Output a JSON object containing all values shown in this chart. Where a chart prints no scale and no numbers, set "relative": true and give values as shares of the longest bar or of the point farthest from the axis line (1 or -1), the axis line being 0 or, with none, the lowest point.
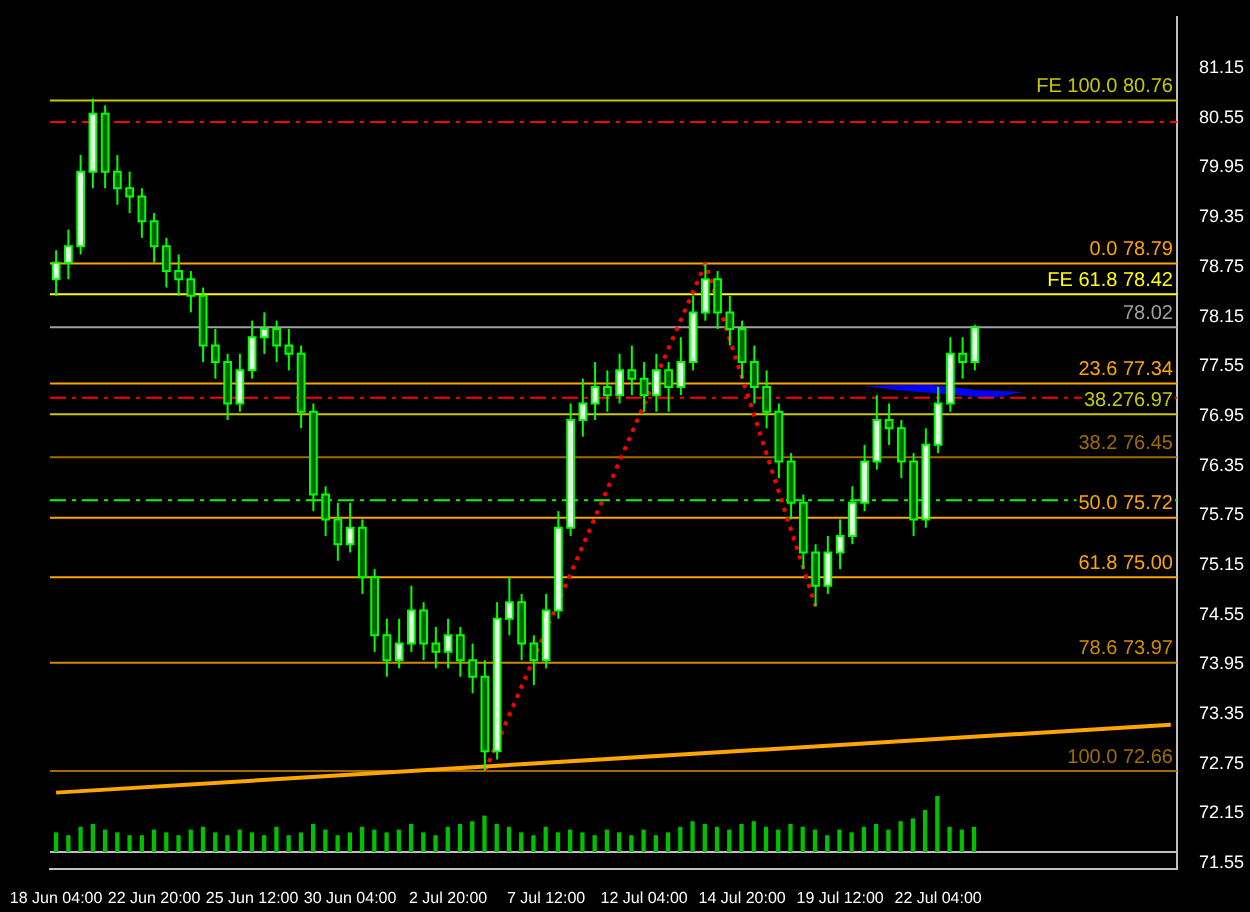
{
  "chart_data": [
    {
      "type": "candlestick",
      "categories": [
        "18 Jun 04:00",
        null,
        null,
        null,
        null,
        null,
        null,
        null,
        "22 Jun 20:00",
        null,
        null,
        null,
        null,
        null,
        null,
        null,
        "25 Jun 12:00",
        null,
        null,
        null,
        null,
        null,
        null,
        null,
        "30 Jun 04:00",
        null,
        null,
        null,
        null,
        null,
        null,
        null,
        "2 Jul 20:00",
        null,
        null,
        null,
        null,
        null,
        null,
        null,
        "7 Jul 12:00",
        null,
        null,
        null,
        null,
        null,
        null,
        null,
        "12 Jul 04:00",
        null,
        null,
        null,
        null,
        null,
        null,
        null,
        "14 Jul 20:00",
        null,
        null,
        null,
        null,
        null,
        null,
        null,
        "19 Jul 12:00",
        null,
        null,
        null,
        null,
        null,
        null,
        null,
        "22 Jul 04:00",
        null,
        null,
        null,
        null,
        null,
        null,
        null,
        null,
        null,
        null,
        null,
        null,
        null,
        null,
        null,
        null,
        null,
        null,
        null
      ],
      "ohlc": [
        [
          78.6,
          78.95,
          78.4,
          78.8
        ],
        [
          78.8,
          79.2,
          78.6,
          79.0
        ],
        [
          79.0,
          80.1,
          78.9,
          79.9
        ],
        [
          79.9,
          80.78,
          79.7,
          80.6
        ],
        [
          80.6,
          80.7,
          79.7,
          79.9
        ],
        [
          79.9,
          80.1,
          79.5,
          79.7
        ],
        [
          79.7,
          79.9,
          79.4,
          79.6
        ],
        [
          79.6,
          79.7,
          79.1,
          79.3
        ],
        [
          79.3,
          79.4,
          78.8,
          79.0
        ],
        [
          79.0,
          79.1,
          78.5,
          78.7
        ],
        [
          78.7,
          78.9,
          78.4,
          78.6
        ],
        [
          78.6,
          78.7,
          78.2,
          78.4
        ],
        [
          78.4,
          78.5,
          77.6,
          77.8
        ],
        [
          77.8,
          78.0,
          77.4,
          77.6
        ],
        [
          77.6,
          77.7,
          76.9,
          77.1
        ],
        [
          77.1,
          77.7,
          77.0,
          77.5
        ],
        [
          77.5,
          78.1,
          77.4,
          77.9
        ],
        [
          77.9,
          78.2,
          77.7,
          78.0
        ],
        [
          78.0,
          78.1,
          77.6,
          77.8
        ],
        [
          77.8,
          78.0,
          77.5,
          77.7
        ],
        [
          77.7,
          77.8,
          76.8,
          77.0
        ],
        [
          77.0,
          77.1,
          75.8,
          76.0
        ],
        [
          76.0,
          76.1,
          75.5,
          75.7
        ],
        [
          75.7,
          75.9,
          75.2,
          75.4
        ],
        [
          75.4,
          75.9,
          75.3,
          75.6
        ],
        [
          75.6,
          75.7,
          74.8,
          75.0
        ],
        [
          75.0,
          75.1,
          74.1,
          74.3
        ],
        [
          74.3,
          74.5,
          73.8,
          74.0
        ],
        [
          74.0,
          74.5,
          73.9,
          74.2
        ],
        [
          74.2,
          74.9,
          74.1,
          74.6
        ],
        [
          74.6,
          74.7,
          74.0,
          74.2
        ],
        [
          74.2,
          74.4,
          73.9,
          74.1
        ],
        [
          74.1,
          74.5,
          73.9,
          74.3
        ],
        [
          74.3,
          74.4,
          73.8,
          74.0
        ],
        [
          74.0,
          74.2,
          73.6,
          73.8
        ],
        [
          73.8,
          74.0,
          72.66,
          72.9
        ],
        [
          72.9,
          74.7,
          72.8,
          74.5
        ],
        [
          74.5,
          75.0,
          74.3,
          74.7
        ],
        [
          74.7,
          74.8,
          74.0,
          74.2
        ],
        [
          74.2,
          74.3,
          73.7,
          74.0
        ],
        [
          74.0,
          74.8,
          73.9,
          74.6
        ],
        [
          74.6,
          75.8,
          74.5,
          75.6
        ],
        [
          75.6,
          77.1,
          75.5,
          76.9
        ],
        [
          76.9,
          77.4,
          76.7,
          77.1
        ],
        [
          77.1,
          77.6,
          76.9,
          77.3
        ],
        [
          77.3,
          77.5,
          77.0,
          77.2
        ],
        [
          77.2,
          77.7,
          77.1,
          77.5
        ],
        [
          77.5,
          77.8,
          77.2,
          77.4
        ],
        [
          77.4,
          77.6,
          77.0,
          77.2
        ],
        [
          77.2,
          77.7,
          77.0,
          77.5
        ],
        [
          77.5,
          77.6,
          77.0,
          77.3
        ],
        [
          77.3,
          77.9,
          77.2,
          77.6
        ],
        [
          77.6,
          78.4,
          77.5,
          78.2
        ],
        [
          78.2,
          78.79,
          78.1,
          78.6
        ],
        [
          78.6,
          78.7,
          78.0,
          78.2
        ],
        [
          78.2,
          78.4,
          77.8,
          78.0
        ],
        [
          78.0,
          78.1,
          77.4,
          77.6
        ],
        [
          77.6,
          77.8,
          77.1,
          77.3
        ],
        [
          77.3,
          77.5,
          76.8,
          77.0
        ],
        [
          77.0,
          77.1,
          76.2,
          76.4
        ],
        [
          76.4,
          76.5,
          75.7,
          75.9
        ],
        [
          75.9,
          76.0,
          75.1,
          75.3
        ],
        [
          75.3,
          75.4,
          74.65,
          74.9
        ],
        [
          74.9,
          75.5,
          74.8,
          75.3
        ],
        [
          75.3,
          75.7,
          75.1,
          75.5
        ],
        [
          75.5,
          76.1,
          75.4,
          75.9
        ],
        [
          75.9,
          76.6,
          75.8,
          76.4
        ],
        [
          76.4,
          77.2,
          76.3,
          76.9
        ],
        [
          76.9,
          77.1,
          76.6,
          76.8
        ],
        [
          76.8,
          76.9,
          76.2,
          76.4
        ],
        [
          76.4,
          76.5,
          75.5,
          75.7
        ],
        [
          75.7,
          76.8,
          75.6,
          76.6
        ],
        [
          76.6,
          77.3,
          76.5,
          77.1
        ],
        [
          77.1,
          77.9,
          77.0,
          77.7
        ],
        [
          77.7,
          77.9,
          77.4,
          77.6
        ],
        [
          77.6,
          78.05,
          77.5,
          78.02
        ],
        null,
        null,
        null,
        null,
        null,
        null,
        null,
        null,
        null,
        null,
        null,
        null,
        null,
        null,
        null,
        null
      ],
      "series": [
        {
          "type": "line",
          "color": "#ffa500",
          "line_style": "solid",
          "values": [
            72.4,
            null,
            null,
            null,
            null,
            null,
            null,
            null,
            null,
            null,
            null,
            null,
            null,
            null,
            null,
            null,
            null,
            null,
            null,
            null,
            null,
            null,
            null,
            null,
            null,
            null,
            null,
            null,
            null,
            null,
            null,
            null,
            null,
            null,
            null,
            null,
            null,
            null,
            null,
            null,
            null,
            null,
            null,
            null,
            null,
            null,
            null,
            null,
            null,
            null,
            null,
            null,
            null,
            null,
            null,
            null,
            null,
            null,
            null,
            null,
            null,
            null,
            null,
            null,
            null,
            null,
            null,
            null,
            null,
            null,
            null,
            null,
            null,
            null,
            null,
            null,
            null,
            null,
            null,
            null,
            null,
            null,
            null,
            null,
            null,
            null,
            null,
            null,
            null,
            null,
            null,
            73.22
          ]
        },
        {
          "type": "line",
          "color": "#ff0000",
          "line_style": "dotted",
          "values": [
            null,
            null,
            null,
            null,
            null,
            null,
            null,
            null,
            null,
            null,
            null,
            null,
            null,
            null,
            null,
            null,
            null,
            null,
            null,
            null,
            null,
            null,
            null,
            null,
            null,
            null,
            null,
            null,
            null,
            null,
            null,
            null,
            null,
            null,
            null,
            72.66,
            null,
            null,
            null,
            null,
            null,
            null,
            null,
            null,
            null,
            null,
            null,
            null,
            null,
            null,
            null,
            null,
            null,
            78.79,
            null,
            null,
            null,
            null,
            null,
            null,
            null,
            null,
            74.65,
            null,
            null,
            null,
            null,
            null,
            null,
            null,
            null,
            null,
            null,
            null,
            null,
            null,
            null,
            null,
            null,
            null,
            null,
            null,
            null,
            null,
            null,
            null,
            null,
            null,
            null,
            null,
            null,
            null
          ]
        }
      ],
      "ref_lines": [
        {
          "axis": "y",
          "value": 80.76,
          "label": "FE 100.0 80.76",
          "color": "#c8c800"
        },
        {
          "axis": "y",
          "value": 78.79,
          "label": "0.0 78.79",
          "color": "#ffa500"
        },
        {
          "axis": "y",
          "value": 78.42,
          "label": "FE 61.8 78.42",
          "color": "#ffff00"
        },
        {
          "axis": "y",
          "value": 77.34,
          "label": "23.6 77.34",
          "color": "#ffa500"
        },
        {
          "axis": "y",
          "value": 76.97,
          "label": "38.276.97",
          "color": "#c8c800"
        },
        {
          "axis": "y",
          "value": 76.45,
          "label": "38.2 76.45",
          "color": "#a06c00"
        },
        {
          "axis": "y",
          "value": 75.72,
          "label": "50.0 75.72",
          "color": "#ffa500"
        },
        {
          "axis": "y",
          "value": 75.0,
          "label": "61.8 75.00",
          "color": "#ffa500"
        },
        {
          "axis": "y",
          "value": 73.97,
          "label": "78.6 73.97",
          "color": "#d08c00"
        },
        {
          "axis": "y",
          "value": 72.66,
          "label": "100.0 72.66",
          "color": "#a06c00"
        },
        {
          "axis": "y",
          "value": 80.5,
          "color": "#ff0000",
          "line_style": "dashed"
        },
        {
          "axis": "y",
          "value": 77.17,
          "color": "#ff0000",
          "line_style": "dashed"
        },
        {
          "axis": "y",
          "value": 75.93,
          "color": "#00ff00",
          "line_style": "dashed"
        },
        {
          "axis": "y",
          "value": 78.02,
          "label": "78.02",
          "color": "#a0a0a0"
        }
      ],
      "ylim": [
        71.48,
        81.77
      ],
      "yticks": [
        71.55,
        72.15,
        72.75,
        73.35,
        73.95,
        74.55,
        75.15,
        75.75,
        76.35,
        76.95,
        77.55,
        78.15,
        78.75,
        79.35,
        79.95,
        80.55,
        81.15
      ],
      "grid": false,
      "legend": false
    },
    {
      "type": "bar",
      "relative": true,
      "color": "#00c000",
      "categories": [
        null,
        null,
        null,
        null,
        null,
        null,
        null,
        null,
        null,
        null,
        null,
        null,
        null,
        null,
        null,
        null,
        null,
        null,
        null,
        null,
        null,
        null,
        null,
        null,
        null,
        null,
        null,
        null,
        null,
        null,
        null,
        null,
        null,
        null,
        null,
        null,
        null,
        null,
        null,
        null,
        null,
        null,
        null,
        null,
        null,
        null,
        null,
        null,
        null,
        null,
        null,
        null,
        null,
        null,
        null,
        null,
        null,
        null,
        null,
        null,
        null,
        null,
        null,
        null,
        null,
        null,
        null,
        null,
        null,
        null,
        null,
        null,
        null,
        null,
        null,
        null,
        null,
        null,
        null,
        null,
        null,
        null,
        null,
        null,
        null,
        null,
        null,
        null,
        null,
        null,
        null,
        null
      ],
      "values": [
        0.35,
        0.3,
        0.45,
        0.5,
        0.4,
        0.35,
        0.3,
        0.3,
        0.4,
        0.35,
        0.3,
        0.4,
        0.45,
        0.35,
        0.3,
        0.4,
        0.35,
        0.3,
        0.45,
        0.3,
        0.35,
        0.5,
        0.4,
        0.3,
        0.35,
        0.45,
        0.4,
        0.35,
        0.4,
        0.5,
        0.35,
        0.3,
        0.45,
        0.5,
        0.55,
        0.65,
        0.5,
        0.45,
        0.35,
        0.3,
        0.45,
        0.35,
        0.4,
        0.35,
        0.3,
        0.4,
        0.35,
        0.3,
        0.4,
        0.3,
        0.35,
        0.45,
        0.55,
        0.5,
        0.45,
        0.4,
        0.5,
        0.55,
        0.45,
        0.4,
        0.5,
        0.45,
        0.4,
        0.3,
        0.4,
        0.35,
        0.45,
        0.5,
        0.4,
        0.55,
        0.6,
        0.75,
        1,
        0.45,
        0.4,
        0.45,
        null,
        null,
        null,
        null,
        null,
        null,
        null,
        null,
        null,
        null,
        null,
        null,
        null,
        null,
        null,
        null
      ]
    }
  ]
}
